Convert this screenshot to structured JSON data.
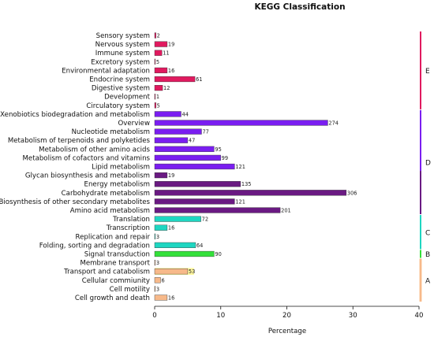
{
  "chart_data": {
    "type": "bar",
    "orientation": "horizontal",
    "title": "KEGG Classification",
    "xlabel": "Percentage",
    "xlim": [
      0,
      40
    ],
    "xticks": [
      "0",
      "10",
      "20",
      "30",
      "40"
    ],
    "grid": false,
    "categories": [
      "Sensory system",
      "Nervous system",
      "Immune system",
      "Excretory system",
      "Environmental adaptation",
      "Endocrine system",
      "Digestive system",
      "Development",
      "Circulatory system",
      "Xenobiotics biodegradation and metabolism",
      "Overview",
      "Nucleotide metabolism",
      "Metabolism of terpenoids and polyketides",
      "Metabolism of other amino acids",
      "Metabolism of cofactors and vitamins",
      "Lipid metabolism",
      "Glycan biosynthesis and metabolism",
      "Energy metabolism",
      "Carbohydrate metabolism",
      "Biosynthesis of other secondary metabolites",
      "Amino acid metabolism",
      "Translation",
      "Transcription",
      "Replication and repair",
      "Folding, sorting and degradation",
      "Signal transduction",
      "Membrane transport",
      "Transport and catabolism",
      "Cellular commiunity",
      "Cell motility",
      "Cell growth and death"
    ],
    "values": [
      0.2,
      1.9,
      1.1,
      0.1,
      1.9,
      6.1,
      1.2,
      0.1,
      0.2,
      4.0,
      26.2,
      7.1,
      5.0,
      9.0,
      9.99,
      12.1,
      1.9,
      13.0,
      29.0,
      12.1,
      19.0,
      7.0,
      1.9,
      0.1,
      6.2,
      9.0,
      0.1,
      5.0,
      0.9,
      0.1,
      1.9
    ],
    "data_labels": [
      "2",
      "19",
      "11",
      "5",
      "16",
      "61",
      "12",
      "1",
      "5",
      "44",
      "274",
      "77",
      "47",
      "95",
      "99",
      "121",
      "19",
      "135",
      "306",
      "121",
      "201",
      "72",
      "16",
      "3",
      "64",
      "90",
      "3",
      "53",
      "6",
      "3",
      "16"
    ],
    "bar_colors": [
      "#e01a5f",
      "#e01a5f",
      "#e01a5f",
      "#e01a5f",
      "#e01a5f",
      "#e01a5f",
      "#e01a5f",
      "#e01a5f",
      "#e01a5f",
      "#7a1ef0",
      "#7a1ef0",
      "#7a1ef0",
      "#7a1ef0",
      "#7a1ef0",
      "#7a1ef0",
      "#7a1ef0",
      "#6a1a82",
      "#6a1a82",
      "#6a1a82",
      "#6a1a82",
      "#6a1a82",
      "#1fd6c1",
      "#1fd6c1",
      "#1fd6c1",
      "#1fd6c1",
      "#34e03a",
      "#f7b98a",
      "#f7b98a",
      "#f7b98a",
      "#f7b98a",
      "#f7b98a"
    ],
    "groups": [
      {
        "label": "E",
        "from": 0,
        "to": 8,
        "color": "#e01a5f"
      },
      {
        "label": "D",
        "from": 9,
        "to": 20,
        "color": "#7a1ef0"
      },
      {
        "label": "C",
        "from": 21,
        "to": 24,
        "color": "#1fd6c1"
      },
      {
        "label": "B",
        "from": 25,
        "to": 25,
        "color": "#34e03a"
      },
      {
        "label": "A",
        "from": 26,
        "to": 30,
        "color": "#f7b98a"
      }
    ],
    "group_side_colors": {
      "D_lower": "#6a1a82",
      "A_tint": "#fde3cc",
      "transport_highlight": "#fff7a0"
    }
  }
}
